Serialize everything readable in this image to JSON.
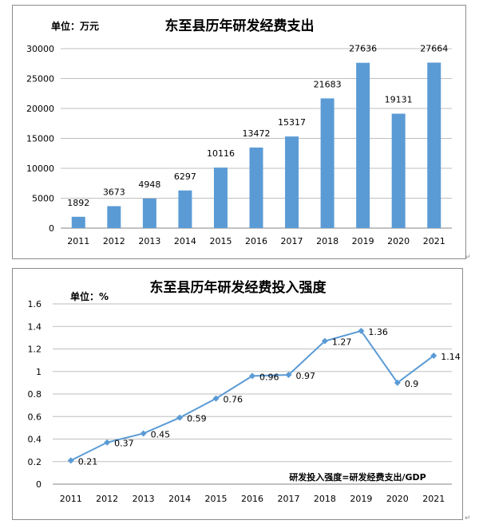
{
  "chart_data": [
    {
      "type": "bar",
      "title": "东至县历年研发经费支出",
      "unit_label": "单位：万元",
      "categories": [
        "2011",
        "2012",
        "2013",
        "2014",
        "2015",
        "2016",
        "2017",
        "2018",
        "2019",
        "2020",
        "2021"
      ],
      "values": [
        1892,
        3673,
        4948,
        6297,
        10116,
        13472,
        15317,
        21683,
        27636,
        19131,
        27664
      ],
      "ylim": [
        0,
        30000
      ],
      "yticks": [
        0,
        5000,
        10000,
        15000,
        20000,
        25000,
        30000
      ],
      "grid": true,
      "bar_color": "#5b9bd5"
    },
    {
      "type": "line",
      "title": "东至县历年研发经费投入强度",
      "unit_label": "单位：%",
      "categories": [
        "2011",
        "2012",
        "2013",
        "2014",
        "2015",
        "2016",
        "2017",
        "2018",
        "2019",
        "2020",
        "2021"
      ],
      "values": [
        0.21,
        0.37,
        0.45,
        0.59,
        0.76,
        0.96,
        0.97,
        1.27,
        1.36,
        0.9,
        1.14
      ],
      "ylim": [
        0,
        1.6
      ],
      "yticks": [
        0,
        0.2,
        0.4,
        0.6,
        0.8,
        1,
        1.2,
        1.4,
        1.6
      ],
      "grid": true,
      "annotation": "研发投入强度=研发经费支出/GDP",
      "line_color": "#5b9bd5"
    }
  ]
}
